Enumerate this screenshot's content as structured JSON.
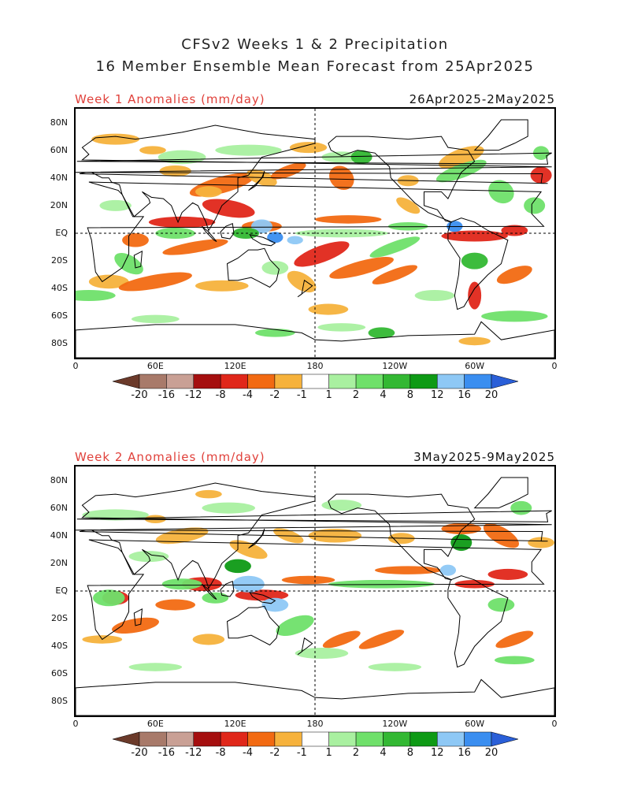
{
  "title_line1": "CFSv2 Weeks 1 & 2 Precipitation",
  "title_line2": "16 Member Ensemble Mean Forecast from 25Apr2025",
  "panels": [
    {
      "label": "Week 1 Anomalies (mm/day)",
      "dates": "26Apr2025-2May2025"
    },
    {
      "label": "Week 2 Anomalies (mm/day)",
      "dates": "3May2025-9May2025"
    }
  ],
  "lat_labels": [
    "80N",
    "60N",
    "40N",
    "20N",
    "EQ",
    "20S",
    "40S",
    "60S",
    "80S"
  ],
  "lon_labels": [
    "0",
    "60E",
    "120E",
    "180",
    "120W",
    "60W",
    "0"
  ],
  "colorbar": {
    "labels": [
      "-20",
      "-16",
      "-12",
      "-8",
      "-4",
      "-2",
      "-1",
      "1",
      "2",
      "4",
      "8",
      "12",
      "16",
      "20"
    ],
    "colors": [
      "#6b3a2a",
      "#a87a6a",
      "#c9a095",
      "#a50f0f",
      "#e0271a",
      "#f26a12",
      "#f6b23c",
      "#ffffff",
      "#a9f0a0",
      "#6fe06a",
      "#33b833",
      "#0e9a15",
      "#8ec8f5",
      "#3a8ef0",
      "#2a5fd8"
    ]
  }
}
